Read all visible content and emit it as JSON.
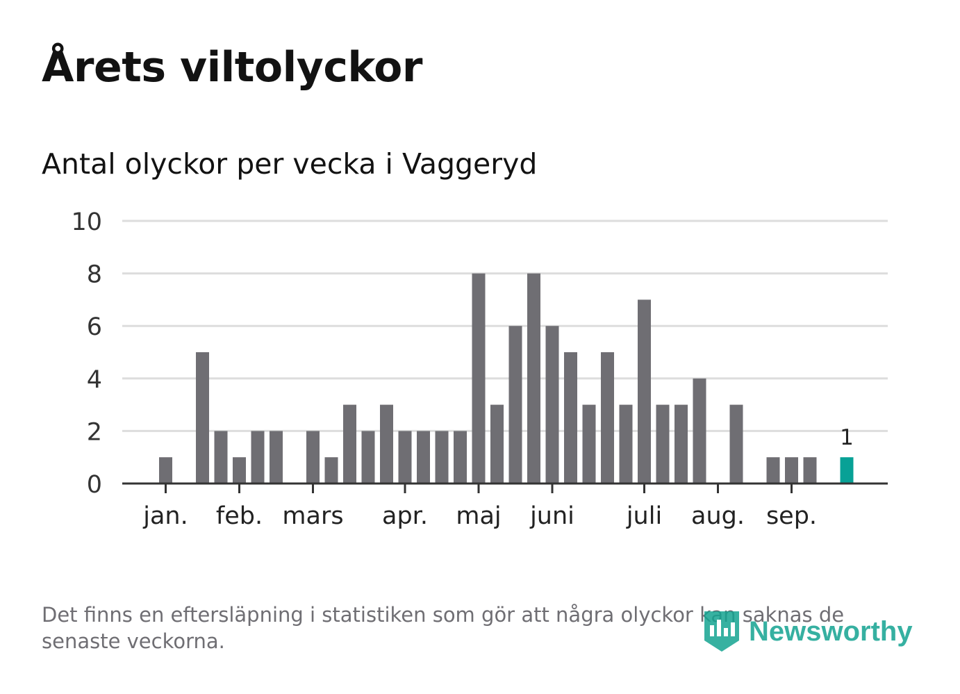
{
  "header": {
    "title": "Årets viltolyckor",
    "subtitle": "Antal olyckor per vecka i Vaggeryd"
  },
  "footer": {
    "note": "Det finns en eftersläpning i statistiken som gör att några olyckor kan saknas de senaste veckorna.",
    "logo": "Newsworthy",
    "logo_icon": "bar-chart-badge-icon"
  },
  "colors": {
    "bar": "#6f6e73",
    "highlight": "#08a196",
    "grid": "#dddddd",
    "axis": "#333333",
    "brand": "#14a391"
  },
  "chart_data": {
    "type": "bar",
    "title": "Antal olyckor per vecka i Vaggeryd",
    "xlabel": "",
    "ylabel": "",
    "ylim": [
      0,
      10
    ],
    "yticks": [
      0,
      2,
      4,
      6,
      8,
      10
    ],
    "grid": true,
    "weeks": [
      1,
      2,
      3,
      4,
      5,
      6,
      7,
      8,
      9,
      10,
      11,
      12,
      13,
      14,
      15,
      16,
      17,
      18,
      19,
      20,
      21,
      22,
      23,
      24,
      25,
      26,
      27,
      28,
      29,
      30,
      31,
      32,
      33,
      34,
      35,
      36,
      37,
      38,
      39,
      40,
      41
    ],
    "values": [
      null,
      1,
      null,
      5,
      2,
      1,
      2,
      2,
      null,
      2,
      1,
      3,
      2,
      3,
      2,
      2,
      2,
      2,
      8,
      3,
      6,
      8,
      6,
      5,
      3,
      5,
      3,
      7,
      3,
      3,
      4,
      null,
      3,
      null,
      1,
      1,
      1,
      null,
      1,
      null,
      null
    ],
    "highlight": {
      "week": 39,
      "value": 1,
      "label": "1"
    },
    "months": [
      {
        "label": "jan.",
        "week": 2
      },
      {
        "label": "feb.",
        "week": 6
      },
      {
        "label": "mars",
        "week": 10
      },
      {
        "label": "apr.",
        "week": 15
      },
      {
        "label": "maj",
        "week": 19
      },
      {
        "label": "juni",
        "week": 23
      },
      {
        "label": "juli",
        "week": 28
      },
      {
        "label": "aug.",
        "week": 32
      },
      {
        "label": "sep.",
        "week": 36
      }
    ]
  }
}
